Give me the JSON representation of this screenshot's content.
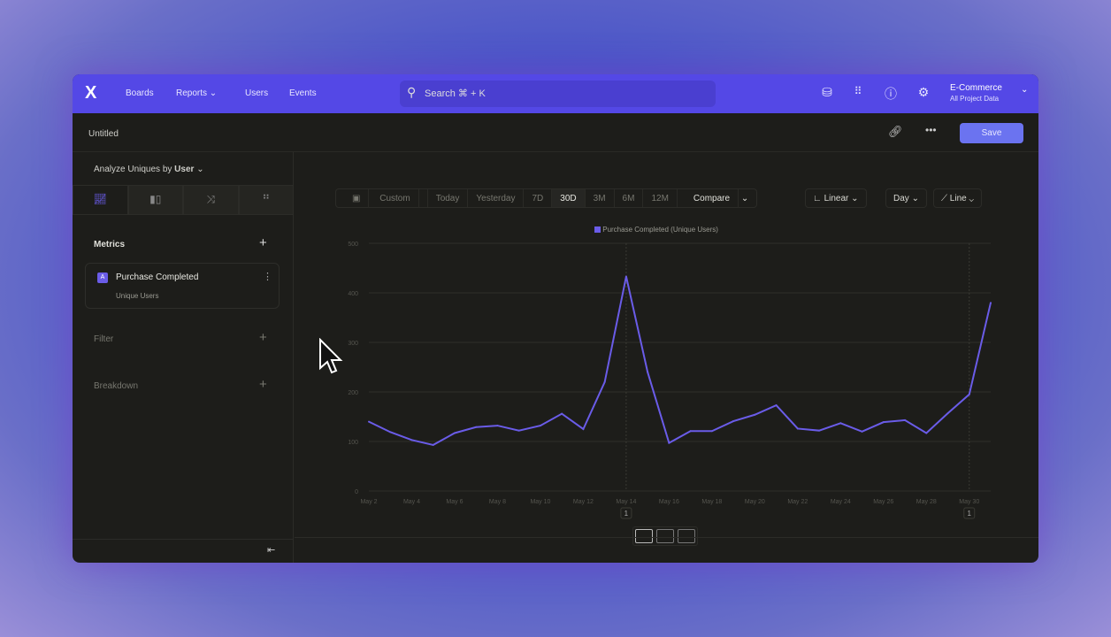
{
  "nav": {
    "brand": "X",
    "items": [
      "Boards",
      "Reports",
      "Users",
      "Events"
    ],
    "search_placeholder": "Search ⌘ + K",
    "project_name": "E-Commerce",
    "project_scope": "All Project Data"
  },
  "toolbar": {
    "title": "Untitled",
    "save_label": "Save"
  },
  "sidebar": {
    "analyze_label": "Analyze Uniques by",
    "analyze_value": "User",
    "metrics_label": "Metrics",
    "metric": {
      "letter": "A",
      "name": "Purchase Completed",
      "measure": "Unique Users"
    },
    "filter_label": "Filter",
    "breakdown_label": "Breakdown"
  },
  "controls": {
    "custom": "Custom",
    "ranges": [
      "Today",
      "Yesterday",
      "7D",
      "30D",
      "3M",
      "6M",
      "12M"
    ],
    "active_range": "30D",
    "compare": "Compare",
    "scale": "Linear",
    "interval": "Day",
    "chart_type": "Line"
  },
  "colors": {
    "accent": "#5448e6",
    "line": "#6a5ce8",
    "button": "#6b73f0"
  },
  "chart_data": {
    "type": "line",
    "legend": "Purchase Completed (Unique Users)",
    "legend_position": "top-center",
    "ylim": [
      0,
      500
    ],
    "yticks": [
      0,
      100,
      200,
      300,
      400,
      500
    ],
    "xtick_labels": [
      "May 2",
      "May 4",
      "May 6",
      "May 8",
      "May 10",
      "May 12",
      "May 14",
      "May 16",
      "May 18",
      "May 20",
      "May 22",
      "May 24",
      "May 26",
      "May 28",
      "May 30"
    ],
    "x": [
      "May 2",
      "May 3",
      "May 4",
      "May 5",
      "May 6",
      "May 7",
      "May 8",
      "May 9",
      "May 10",
      "May 11",
      "May 12",
      "May 13",
      "May 14",
      "May 15",
      "May 16",
      "May 17",
      "May 18",
      "May 19",
      "May 20",
      "May 21",
      "May 22",
      "May 23",
      "May 24",
      "May 25",
      "May 26",
      "May 27",
      "May 28",
      "May 29",
      "May 30",
      "May 31"
    ],
    "series": [
      {
        "name": "Purchase Completed (Unique Users)",
        "values": [
          140,
          119,
          103,
          93,
          117,
          129,
          132,
          122,
          132,
          156,
          125,
          220,
          433,
          240,
          97,
          121,
          121,
          141,
          154,
          173,
          126,
          122,
          137,
          120,
          139,
          143,
          117,
          157,
          195,
          380
        ]
      }
    ],
    "annotations": [
      {
        "x": "May 14",
        "label": "1"
      },
      {
        "x": "May 30",
        "label": "1"
      }
    ],
    "grid": true
  }
}
